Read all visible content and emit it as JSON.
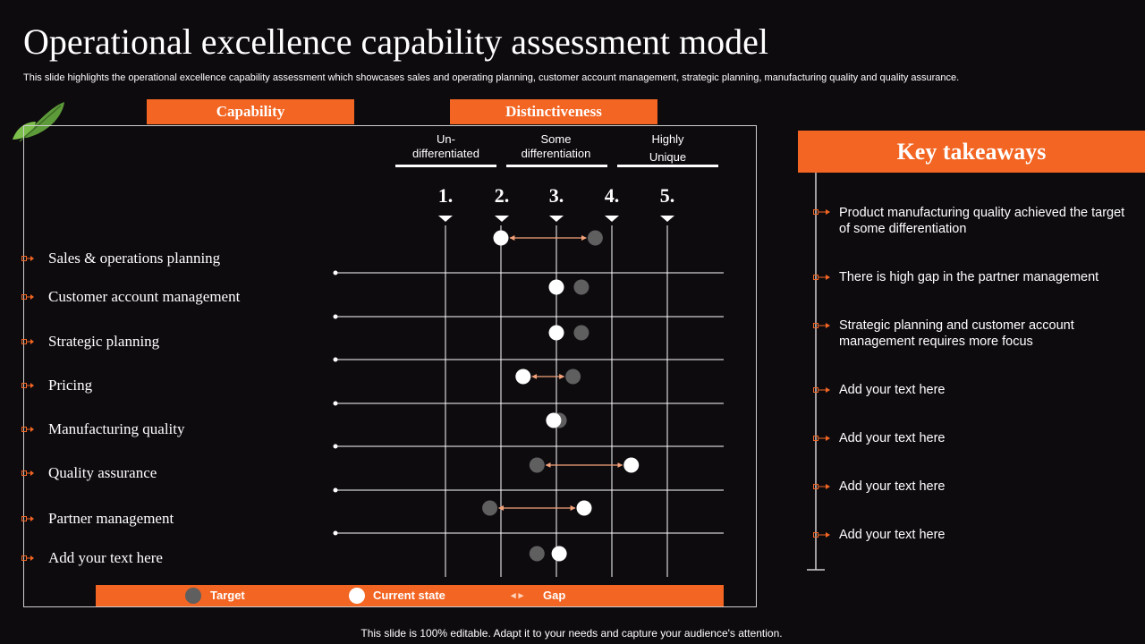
{
  "title": "Operational excellence capability assessment model",
  "subtitle": "This slide highlights the operational excellence capability assessment which showcases sales and operating planning, customer account management, strategic planning, manufacturing quality and quality assurance.",
  "headers": {
    "capability": "Capability",
    "distinctiveness": "Distinctiveness"
  },
  "columns": [
    {
      "label": "Un-\ndifferentiated"
    },
    {
      "label": "Some\ndifferentiation"
    },
    {
      "label": "Highly\nUnique"
    }
  ],
  "scale_numbers": [
    "1.",
    "2.",
    "3.",
    "4.",
    "5."
  ],
  "colors": {
    "accent": "#f26522",
    "background": "#0e0b0f",
    "target": "#5f5f5f",
    "current": "#ffffff",
    "gap_arrow": "#f4a27a"
  },
  "chart_data": {
    "type": "dot-plot",
    "scale": [
      1,
      5
    ],
    "rows": [
      {
        "label": "Sales & operations planning",
        "current": 2.0,
        "target": 3.7
      },
      {
        "label": "Customer account management",
        "current": 3.0,
        "target": 3.45
      },
      {
        "label": "Strategic planning",
        "current": 3.0,
        "target": 3.45
      },
      {
        "label": "Pricing",
        "current": 2.4,
        "target": 3.3
      },
      {
        "label": "Manufacturing  quality",
        "current": 2.95,
        "target": 3.05
      },
      {
        "label": "Quality  assurance",
        "current": 4.35,
        "target": 2.65
      },
      {
        "label": "Partner management",
        "current": 3.5,
        "target": 1.8
      },
      {
        "label": "Add your text here",
        "current": 3.05,
        "target": 2.65
      }
    ]
  },
  "legend": {
    "target": "Target",
    "current": "Current state",
    "gap": "Gap",
    "gap_symbol": "◂ ▸"
  },
  "key_takeaways": {
    "title": "Key takeaways",
    "items": [
      "Product manufacturing quality achieved the target of some differentiation",
      "There is high gap in the partner management",
      "Strategic planning and customer account management requires more focus",
      "Add your text here",
      "Add your text here",
      "Add your text here",
      "Add your text here"
    ]
  },
  "footer": "This slide is 100% editable. Adapt it to your needs and capture your audience's attention."
}
